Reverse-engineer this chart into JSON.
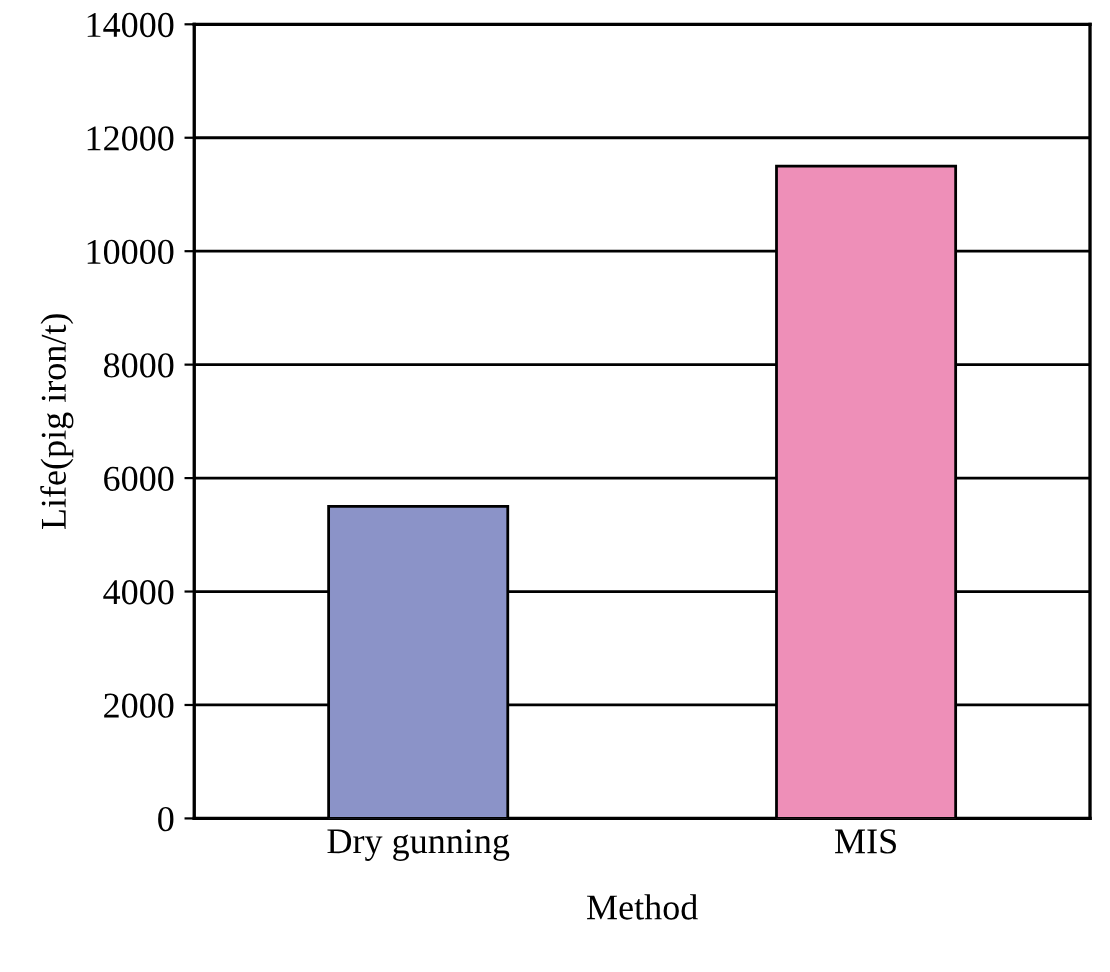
{
  "chart_data": {
    "type": "bar",
    "xlabel": "Method",
    "ylabel": "Life(pig iron/t)",
    "categories": [
      "Dry gunning",
      "MIS"
    ],
    "values": [
      5500,
      11500
    ],
    "colors": [
      "#8b93c8",
      "#ee8fb8"
    ],
    "ylim": [
      0,
      14000
    ],
    "yticks": [
      0,
      2000,
      4000,
      6000,
      8000,
      10000,
      12000,
      14000
    ],
    "grid": "y"
  }
}
